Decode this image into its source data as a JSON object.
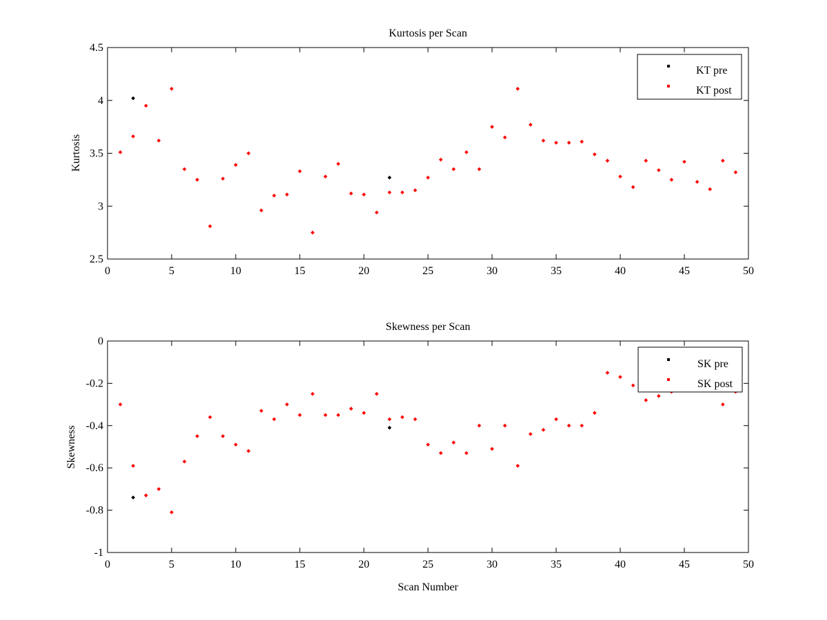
{
  "chart_data": [
    {
      "type": "scatter",
      "title": "Kurtosis per Scan",
      "xlabel": "",
      "ylabel": "Kurtosis",
      "xlim": [
        0,
        50
      ],
      "ylim": [
        2.5,
        4.5
      ],
      "xticks": [
        "0",
        "5",
        "10",
        "15",
        "20",
        "25",
        "30",
        "35",
        "40",
        "45",
        "50"
      ],
      "yticks": [
        "2.5",
        "3",
        "3.5",
        "4",
        "4.5"
      ],
      "grid": false,
      "legend_position": "top-right",
      "series": [
        {
          "name": "KT pre",
          "color": "#000000",
          "marker": "dot",
          "points": [
            [
              2,
              4.02
            ],
            [
              22,
              3.27
            ]
          ]
        },
        {
          "name": "KT post",
          "color": "#ff0000",
          "marker": "dot",
          "points": [
            [
              1,
              3.51
            ],
            [
              2,
              3.66
            ],
            [
              3,
              3.95
            ],
            [
              4,
              3.62
            ],
            [
              5,
              4.11
            ],
            [
              6,
              3.35
            ],
            [
              7,
              3.25
            ],
            [
              8,
              2.81
            ],
            [
              9,
              3.26
            ],
            [
              10,
              3.39
            ],
            [
              11,
              3.5
            ],
            [
              12,
              2.96
            ],
            [
              13,
              3.1
            ],
            [
              14,
              3.11
            ],
            [
              15,
              3.33
            ],
            [
              16,
              2.75
            ],
            [
              17,
              3.28
            ],
            [
              18,
              3.4
            ],
            [
              19,
              3.12
            ],
            [
              20,
              3.11
            ],
            [
              21,
              2.94
            ],
            [
              22,
              3.13
            ],
            [
              23,
              3.13
            ],
            [
              24,
              3.15
            ],
            [
              25,
              3.27
            ],
            [
              26,
              3.44
            ],
            [
              27,
              3.35
            ],
            [
              28,
              3.51
            ],
            [
              29,
              3.35
            ],
            [
              30,
              3.75
            ],
            [
              31,
              3.65
            ],
            [
              32,
              4.11
            ],
            [
              33,
              3.77
            ],
            [
              34,
              3.62
            ],
            [
              35,
              3.6
            ],
            [
              36,
              3.6
            ],
            [
              37,
              3.61
            ],
            [
              38,
              3.49
            ],
            [
              39,
              3.43
            ],
            [
              40,
              3.28
            ],
            [
              41,
              3.18
            ],
            [
              42,
              3.43
            ],
            [
              43,
              3.34
            ],
            [
              44,
              3.25
            ],
            [
              45,
              3.42
            ],
            [
              46,
              3.23
            ],
            [
              47,
              3.16
            ],
            [
              48,
              3.43
            ],
            [
              49,
              3.32
            ]
          ]
        }
      ]
    },
    {
      "type": "scatter",
      "title": "Skewness per Scan",
      "xlabel": "Scan Number",
      "ylabel": "Skewness",
      "xlim": [
        0,
        50
      ],
      "ylim": [
        -1,
        0
      ],
      "xticks": [
        "0",
        "5",
        "10",
        "15",
        "20",
        "25",
        "30",
        "35",
        "40",
        "45",
        "50"
      ],
      "yticks": [
        "-1",
        "-0.8",
        "-0.6",
        "-0.4",
        "-0.2",
        "0"
      ],
      "grid": false,
      "legend_position": "top-right",
      "series": [
        {
          "name": "SK pre",
          "color": "#000000",
          "marker": "dot",
          "points": [
            [
              2,
              -0.74
            ],
            [
              22,
              -0.41
            ]
          ]
        },
        {
          "name": "SK post",
          "color": "#ff0000",
          "marker": "dot",
          "points": [
            [
              1,
              -0.3
            ],
            [
              2,
              -0.59
            ],
            [
              3,
              -0.73
            ],
            [
              4,
              -0.7
            ],
            [
              5,
              -0.81
            ],
            [
              6,
              -0.57
            ],
            [
              7,
              -0.45
            ],
            [
              8,
              -0.36
            ],
            [
              9,
              -0.45
            ],
            [
              10,
              -0.49
            ],
            [
              11,
              -0.52
            ],
            [
              12,
              -0.33
            ],
            [
              13,
              -0.37
            ],
            [
              14,
              -0.3
            ],
            [
              15,
              -0.35
            ],
            [
              16,
              -0.25
            ],
            [
              17,
              -0.35
            ],
            [
              18,
              -0.35
            ],
            [
              19,
              -0.32
            ],
            [
              20,
              -0.34
            ],
            [
              21,
              -0.25
            ],
            [
              22,
              -0.37
            ],
            [
              23,
              -0.36
            ],
            [
              24,
              -0.37
            ],
            [
              25,
              -0.49
            ],
            [
              26,
              -0.53
            ],
            [
              27,
              -0.48
            ],
            [
              28,
              -0.53
            ],
            [
              29,
              -0.4
            ],
            [
              30,
              -0.51
            ],
            [
              31,
              -0.4
            ],
            [
              32,
              -0.59
            ],
            [
              33,
              -0.44
            ],
            [
              34,
              -0.42
            ],
            [
              35,
              -0.37
            ],
            [
              36,
              -0.4
            ],
            [
              37,
              -0.4
            ],
            [
              38,
              -0.34
            ],
            [
              39,
              -0.15
            ],
            [
              40,
              -0.17
            ],
            [
              41,
              -0.21
            ],
            [
              42,
              -0.28
            ],
            [
              43,
              -0.26
            ],
            [
              44,
              -0.24
            ],
            [
              45,
              -0.23
            ],
            [
              46,
              -0.2
            ],
            [
              47,
              -0.22
            ],
            [
              48,
              -0.3
            ],
            [
              49,
              -0.24
            ]
          ]
        }
      ]
    }
  ]
}
